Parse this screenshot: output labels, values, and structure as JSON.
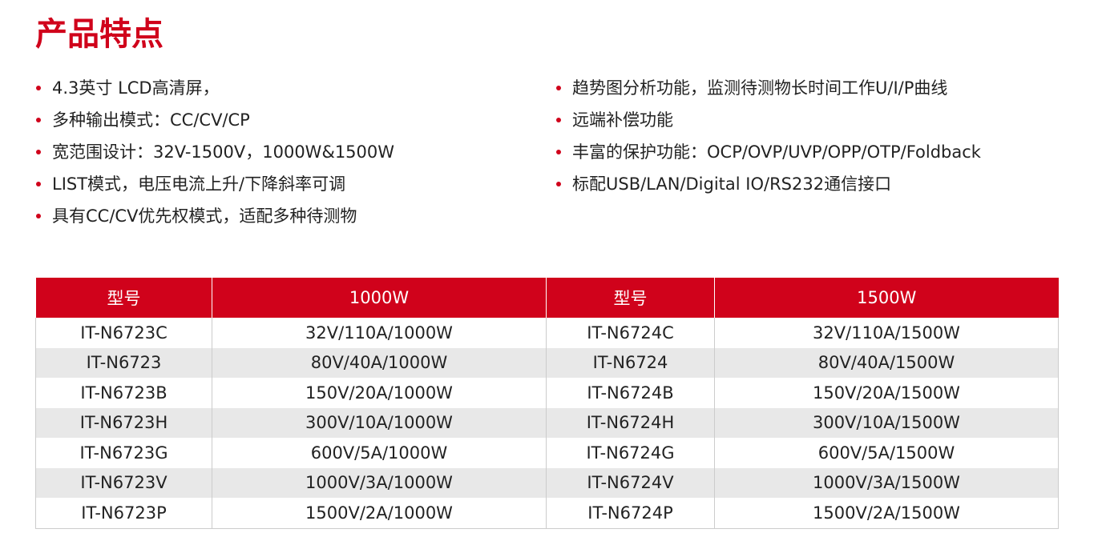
{
  "header": {
    "title": "产品特点"
  },
  "features": {
    "left": [
      "4.3英寸 LCD高清屏，",
      "多种输出模式：CC/CV/CP",
      "宽范围设计：32V-1500V，1000W&1500W",
      "LIST模式，电压电流上升/下降斜率可调",
      "具有CC/CV优先权模式，适配多种待测物"
    ],
    "right": [
      "趋势图分析功能，监测待测物长时间工作U/I/P曲线",
      "远端补偿功能",
      "丰富的保护功能：OCP/OVP/UVP/OPP/OTP/Foldback",
      "标配USB/LAN/Digital IO/RS232通信接口"
    ]
  },
  "table": {
    "headers": [
      "型号",
      "1000W",
      "型号",
      "1500W"
    ],
    "rows": [
      [
        "IT-N6723C",
        "32V/110A/1000W",
        "IT-N6724C",
        "32V/110A/1500W"
      ],
      [
        "IT-N6723",
        "80V/40A/1000W",
        "IT-N6724",
        "80V/40A/1500W"
      ],
      [
        "IT-N6723B",
        "150V/20A/1000W",
        "IT-N6724B",
        "150V/20A/1500W"
      ],
      [
        "IT-N6723H",
        "300V/10A/1000W",
        "IT-N6724H",
        "300V/10A/1500W"
      ],
      [
        "IT-N6723G",
        "600V/5A/1000W",
        "IT-N6724G",
        "600V/5A/1500W"
      ],
      [
        "IT-N6723V",
        "1000V/3A/1000W",
        "IT-N6724V",
        "1000V/3A/1500W"
      ],
      [
        "IT-N6723P",
        "1500V/2A/1000W",
        "IT-N6724P",
        "1500V/2A/1500W"
      ]
    ]
  }
}
